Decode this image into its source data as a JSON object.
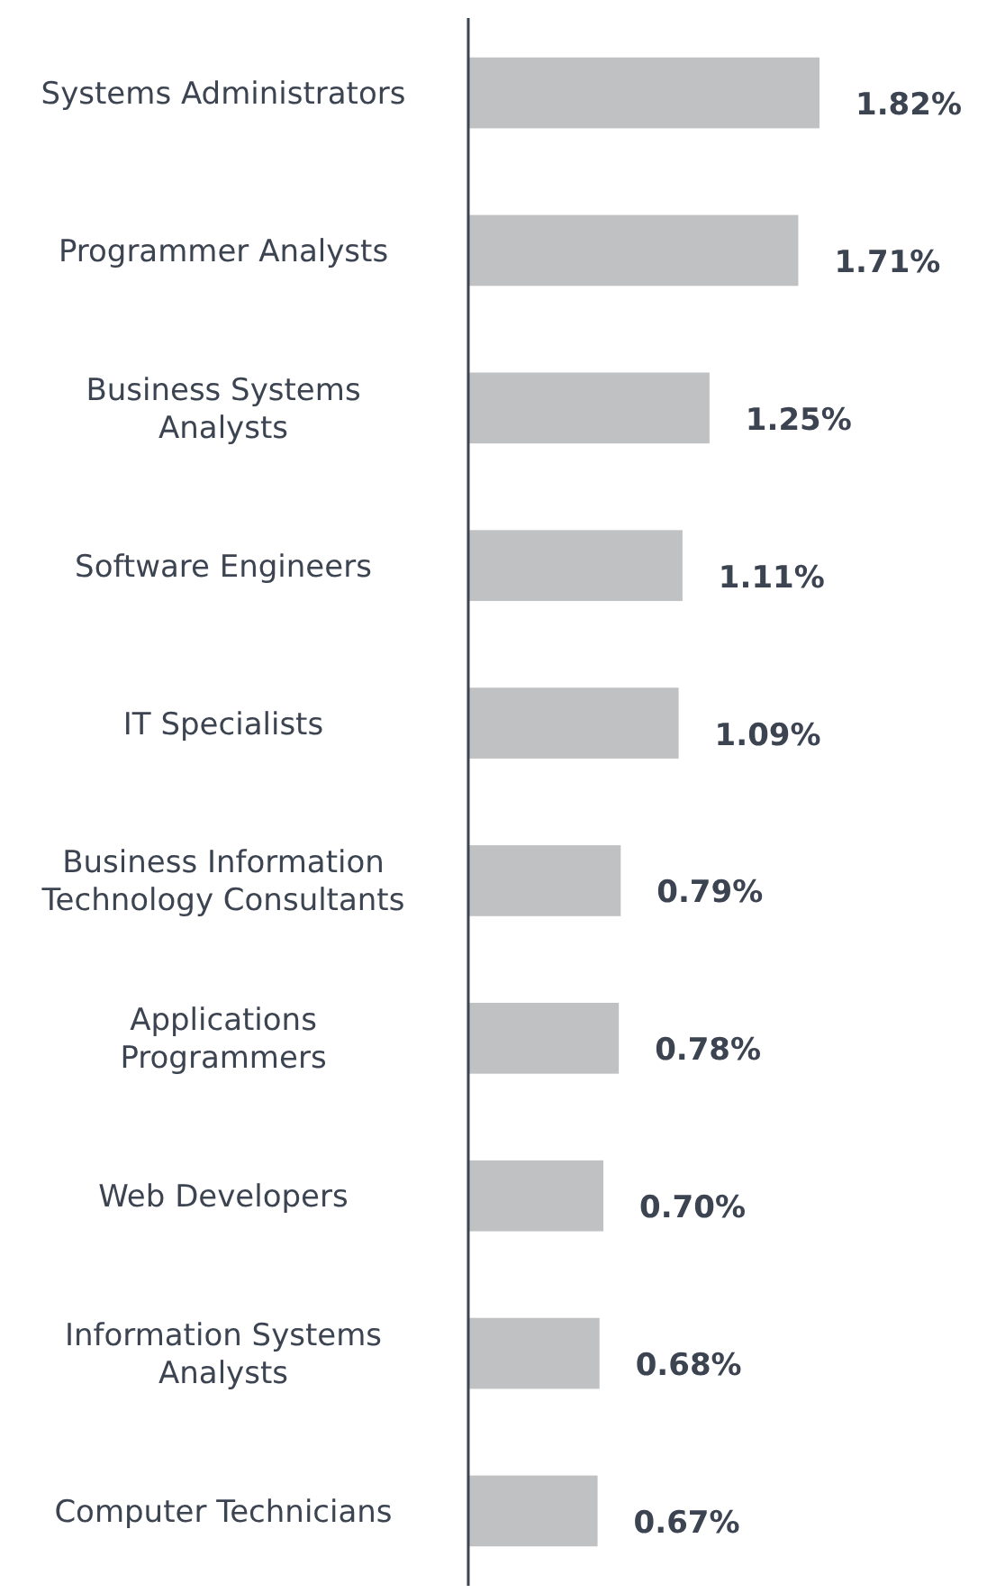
{
  "chart_data": {
    "type": "bar",
    "orientation": "horizontal",
    "relative": false,
    "categories": [
      "Systems Administrators",
      "Programmer Analysts",
      "Business Systems Analysts",
      "Software Engineers",
      "IT Specialists",
      "Business Information Technology Consultants",
      "Applications Programmers",
      "Web Developers",
      "Information Systems Analysts",
      "Computer Technicians"
    ],
    "values": [
      1.82,
      1.71,
      1.25,
      1.11,
      1.09,
      0.79,
      0.78,
      0.7,
      0.68,
      0.67
    ],
    "value_labels": [
      "1.82%",
      "1.71%",
      "1.25%",
      "1.11%",
      "1.09%",
      "0.79%",
      "0.78%",
      "0.70%",
      "0.68%",
      "0.67%"
    ],
    "color": "#c0c1c3"
  }
}
